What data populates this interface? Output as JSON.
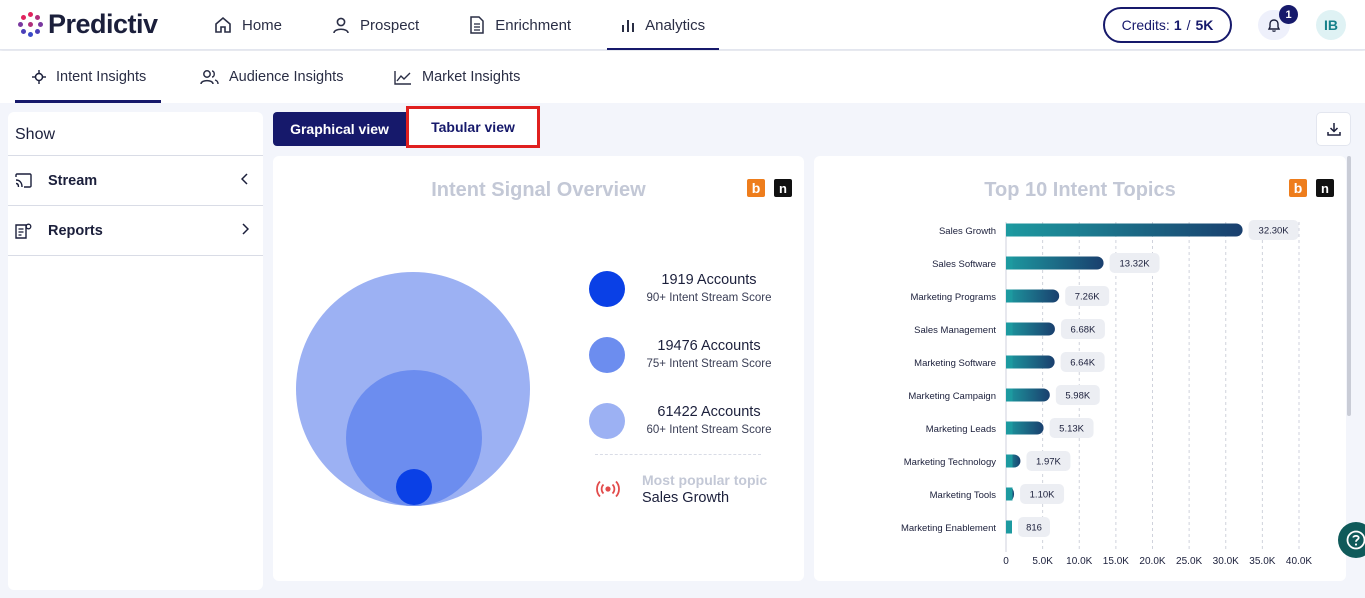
{
  "app": {
    "name": "Predictiv"
  },
  "nav": {
    "items": [
      {
        "label": "Home",
        "icon": "home-icon"
      },
      {
        "label": "Prospect",
        "icon": "user-icon"
      },
      {
        "label": "Enrichment",
        "icon": "document-icon"
      },
      {
        "label": "Analytics",
        "icon": "bar-chart-icon",
        "active": true
      }
    ]
  },
  "header": {
    "credits_label": "Credits:",
    "credits_used": "1",
    "credits_sep": "/",
    "credits_total": "5K",
    "notification_count": "1",
    "avatar_initials": "IB"
  },
  "subtabs": [
    {
      "label": "Intent Insights",
      "icon": "target-icon",
      "active": true
    },
    {
      "label": "Audience Insights",
      "icon": "users-icon"
    },
    {
      "label": "Market Insights",
      "icon": "trend-line-icon"
    }
  ],
  "sidebar": {
    "title": "Show",
    "items": [
      {
        "label": "Stream",
        "icon": "cast-icon",
        "chevron": "chevron-left-icon"
      },
      {
        "label": "Reports",
        "icon": "report-icon",
        "chevron": "chevron-right-icon"
      }
    ]
  },
  "view_toggle": {
    "graphical": "Graphical view",
    "tabular": "Tabular view"
  },
  "overview": {
    "title": "Intent Signal Overview",
    "source_badges": [
      "b",
      "n"
    ],
    "legend": [
      {
        "count": "1919 Accounts",
        "sub": "90+ Intent Stream Score",
        "color": "#0a40e6"
      },
      {
        "count": "19476 Accounts",
        "sub": "75+ Intent Stream Score",
        "color": "#6c8def"
      },
      {
        "count": "61422 Accounts",
        "sub": "60+ Intent Stream Score",
        "color": "#9cb1f3"
      }
    ],
    "popular_label": "Most popular topic",
    "popular_value": "Sales Growth"
  },
  "chart_data": {
    "type": "bar",
    "orientation": "horizontal",
    "title": "Top 10 Intent Topics",
    "categories": [
      "Sales Growth",
      "Sales Software",
      "Marketing Programs",
      "Sales Management",
      "Marketing Software",
      "Marketing Campaign",
      "Marketing Leads",
      "Marketing Technology",
      "Marketing Tools",
      "Marketing Enablement"
    ],
    "values": [
      32300,
      13320,
      7260,
      6680,
      6640,
      5980,
      5130,
      1970,
      1100,
      816
    ],
    "data_labels": [
      "32.30K",
      "13.32K",
      "7.26K",
      "6.68K",
      "6.64K",
      "5.98K",
      "5.13K",
      "1.97K",
      "1.10K",
      "816"
    ],
    "x_ticks": [
      "0",
      "5.0K",
      "10.0K",
      "15.0K",
      "20.0K",
      "25.0K",
      "30.0K",
      "35.0K",
      "40.0K"
    ],
    "xlim": [
      0,
      40000
    ],
    "grid": true,
    "colors": {
      "start": "#1d9aa0",
      "end": "#1a3f6e"
    }
  }
}
